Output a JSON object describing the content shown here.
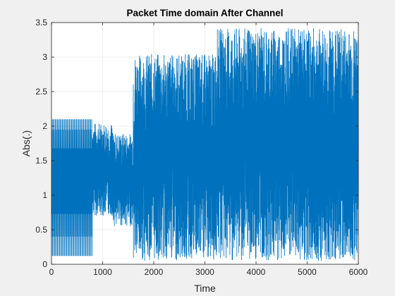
{
  "chart_data": {
    "type": "line",
    "title": "Packet Time domain After Channel",
    "xlabel": "Time",
    "ylabel": "Abs(.)",
    "xlim": [
      0,
      6000
    ],
    "ylim": [
      0,
      3.5
    ],
    "grid": true,
    "x_ticks": [
      0,
      1000,
      2000,
      3000,
      4000,
      5000,
      6000
    ],
    "x_tick_labels": [
      "0",
      "1000",
      "2000",
      "3000",
      "4000",
      "5000",
      "6000"
    ],
    "y_ticks": [
      0,
      0.5,
      1,
      1.5,
      2,
      2.5,
      3,
      3.5
    ],
    "y_tick_labels": [
      "0",
      "0.5",
      "1",
      "1.5",
      "2",
      "2.5",
      "3",
      "3.5"
    ],
    "series": [
      {
        "color": "#0072bd",
        "segments": [
          {
            "x_range": [
              0,
              800
            ],
            "pattern": "periodic",
            "levels": [
              0.12,
              0.4,
              0.73,
              1.05,
              1.28,
              1.42,
              1.68,
              1.95,
              2.1
            ]
          },
          {
            "x_range": [
              800,
              1200
            ],
            "pattern": "noisy",
            "min": 0.7,
            "max": 2.05
          },
          {
            "x_range": [
              1200,
              1600
            ],
            "pattern": "noisy",
            "min": 0.55,
            "max": 1.9
          },
          {
            "x_range": [
              1600,
              3200
            ],
            "pattern": "noisy",
            "min": 0.05,
            "max": 3.05
          },
          {
            "x_range": [
              3200,
              6000
            ],
            "pattern": "noisy",
            "min": 0.05,
            "max": 3.42
          }
        ]
      }
    ],
    "line_color": "#0072bd",
    "axes_bg": "#ffffff",
    "figure_bg": "#f0f0f0"
  }
}
